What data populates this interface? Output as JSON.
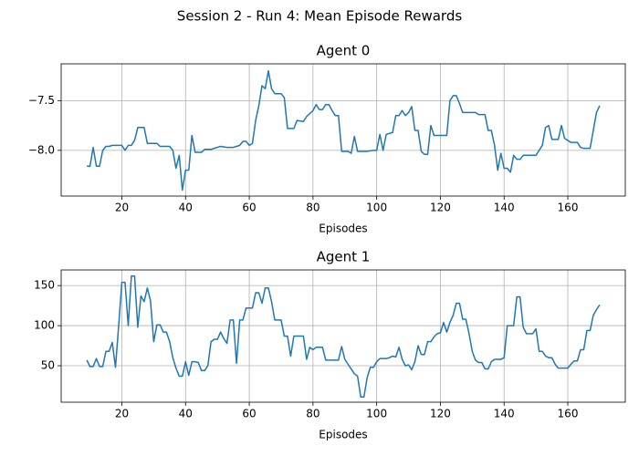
{
  "title": "Session 2 - Run 4: Mean Episode Rewards",
  "chart_data": [
    {
      "type": "line",
      "title": "Agent 0",
      "xlabel": "Episodes",
      "color": "#1f77b4",
      "grid": true,
      "xlim": [
        0.95,
        178.05
      ],
      "ylim": [
        -8.46,
        -7.13
      ],
      "xticks": [
        20,
        40,
        60,
        80,
        100,
        120,
        140,
        160
      ],
      "yticks": [
        {
          "value": -8.0,
          "label": "−8.0"
        },
        {
          "value": -7.5,
          "label": "−7.5"
        }
      ],
      "x": [
        9,
        10,
        11,
        12,
        13,
        14,
        15,
        16,
        17,
        19,
        20,
        21,
        22,
        23,
        24,
        25,
        27,
        28,
        30,
        31,
        32,
        33,
        35,
        36,
        37,
        38,
        39,
        40,
        41,
        42,
        43,
        45,
        46,
        48,
        50,
        51,
        53,
        55,
        57,
        58,
        59,
        60,
        61,
        62,
        63,
        64,
        65,
        66,
        67,
        68,
        70,
        71,
        72,
        74,
        75,
        77,
        78,
        80,
        81,
        82,
        83,
        84,
        85,
        86,
        87,
        88,
        89,
        91,
        92,
        93,
        94,
        97,
        99,
        100,
        101,
        102,
        103,
        105,
        106,
        107,
        108,
        109,
        110,
        111,
        112,
        113,
        114,
        115,
        116,
        117,
        118,
        119,
        122,
        123,
        124,
        125,
        126,
        127,
        129,
        131,
        132,
        134,
        135,
        136,
        137,
        138,
        139,
        140,
        141,
        142,
        143,
        144,
        145,
        146,
        148,
        150,
        151,
        152,
        153,
        154,
        155,
        157,
        158,
        159,
        160,
        161,
        163,
        164,
        165,
        167,
        168,
        169,
        170
      ],
      "values": [
        -8.16,
        -8.16,
        -7.97,
        -8.16,
        -8.16,
        -8.0,
        -7.96,
        -7.96,
        -7.95,
        -7.95,
        -7.95,
        -8.0,
        -7.95,
        -7.95,
        -7.9,
        -7.77,
        -7.77,
        -7.93,
        -7.93,
        -7.93,
        -7.96,
        -7.96,
        -7.96,
        -8.0,
        -8.18,
        -8.05,
        -8.4,
        -8.2,
        -8.2,
        -7.85,
        -8.02,
        -8.02,
        -7.99,
        -7.99,
        -7.97,
        -7.96,
        -7.97,
        -7.97,
        -7.95,
        -7.91,
        -7.91,
        -7.95,
        -7.93,
        -7.7,
        -7.55,
        -7.35,
        -7.38,
        -7.2,
        -7.38,
        -7.43,
        -7.43,
        -7.47,
        -7.78,
        -7.78,
        -7.7,
        -7.71,
        -7.66,
        -7.6,
        -7.54,
        -7.59,
        -7.59,
        -7.54,
        -7.54,
        -7.6,
        -7.65,
        -7.65,
        -8.01,
        -8.01,
        -8.03,
        -7.86,
        -8.01,
        -8.01,
        -8.0,
        -8.0,
        -7.84,
        -8.0,
        -7.84,
        -7.82,
        -7.65,
        -7.65,
        -7.6,
        -7.65,
        -7.62,
        -7.56,
        -7.8,
        -7.8,
        -8.01,
        -8.04,
        -8.04,
        -7.75,
        -7.85,
        -7.85,
        -7.85,
        -7.5,
        -7.45,
        -7.45,
        -7.53,
        -7.62,
        -7.62,
        -7.62,
        -7.64,
        -7.64,
        -7.8,
        -7.8,
        -7.95,
        -8.2,
        -8.03,
        -8.18,
        -8.18,
        -8.22,
        -8.05,
        -8.09,
        -8.09,
        -8.05,
        -8.05,
        -8.05,
        -8.0,
        -7.95,
        -7.77,
        -7.75,
        -7.89,
        -7.89,
        -7.75,
        -7.88,
        -7.9,
        -7.92,
        -7.92,
        -7.97,
        -7.98,
        -7.98,
        -7.8,
        -7.62,
        -7.55
      ]
    },
    {
      "type": "line",
      "title": "Agent 1",
      "xlabel": "Episodes",
      "color": "#1f77b4",
      "grid": true,
      "xlim": [
        0.95,
        178.05
      ],
      "ylim": [
        4.5,
        169.5
      ],
      "xticks": [
        20,
        40,
        60,
        80,
        100,
        120,
        140,
        160
      ],
      "yticks": [
        50,
        100,
        150
      ],
      "x": [
        9,
        10,
        11,
        12,
        13,
        14,
        15,
        16,
        17,
        18,
        19,
        20,
        21,
        22,
        23,
        24,
        25,
        26,
        27,
        28,
        29,
        30,
        31,
        32,
        33,
        34,
        35,
        36,
        37,
        38,
        39,
        40,
        41,
        42,
        43,
        44,
        45,
        46,
        47,
        48,
        49,
        50,
        51,
        52,
        53,
        54,
        55,
        56,
        57,
        58,
        59,
        60,
        61,
        62,
        63,
        64,
        65,
        66,
        67,
        68,
        70,
        71,
        72,
        73,
        74,
        75,
        76,
        77,
        78,
        79,
        80,
        81,
        82,
        83,
        84,
        86,
        88,
        89,
        90,
        91,
        92,
        93,
        94,
        95,
        96,
        97,
        98,
        99,
        100,
        101,
        103,
        104,
        105,
        106,
        107,
        108,
        109,
        110,
        111,
        112,
        113,
        114,
        115,
        116,
        117,
        118,
        119,
        120,
        121,
        122,
        123,
        124,
        125,
        126,
        127,
        128,
        129,
        130,
        131,
        132,
        133,
        134,
        135,
        136,
        137,
        138,
        139,
        140,
        141,
        142,
        143,
        144,
        145,
        146,
        147,
        148,
        149,
        150,
        151,
        152,
        153,
        154,
        155,
        156,
        157,
        158,
        159,
        160,
        161,
        162,
        163,
        164,
        165,
        166,
        167,
        168,
        169,
        170
      ],
      "values": [
        57,
        49,
        49,
        59,
        49,
        49,
        68,
        68,
        79,
        48,
        100,
        154,
        154,
        100,
        162,
        162,
        98,
        137,
        130,
        147,
        131,
        80,
        101,
        101,
        92,
        92,
        80,
        60,
        47,
        37,
        37,
        55,
        38,
        55,
        55,
        54,
        44,
        44,
        50,
        80,
        83,
        83,
        92,
        84,
        78,
        107,
        107,
        53,
        107,
        107,
        122,
        122,
        122,
        141,
        141,
        128,
        147,
        147,
        130,
        107,
        107,
        87,
        87,
        62,
        87,
        87,
        87,
        87,
        58,
        73,
        70,
        73,
        73,
        73,
        57,
        57,
        57,
        74,
        58,
        52,
        46,
        40,
        37,
        11,
        11,
        35,
        48,
        48,
        55,
        59,
        59,
        60,
        62,
        61,
        73,
        58,
        50,
        51,
        45,
        55,
        75,
        64,
        64,
        80,
        80,
        86,
        90,
        91,
        104,
        92,
        104,
        113,
        128,
        128,
        108,
        108,
        90,
        68,
        57,
        54,
        54,
        46,
        46,
        55,
        58,
        58,
        58,
        60,
        100,
        100,
        100,
        136,
        136,
        98,
        90,
        90,
        90,
        96,
        68,
        68,
        62,
        60,
        60,
        52,
        47,
        47,
        47,
        47,
        52,
        56,
        56,
        70,
        70,
        94,
        94,
        113,
        120,
        126
      ]
    }
  ]
}
